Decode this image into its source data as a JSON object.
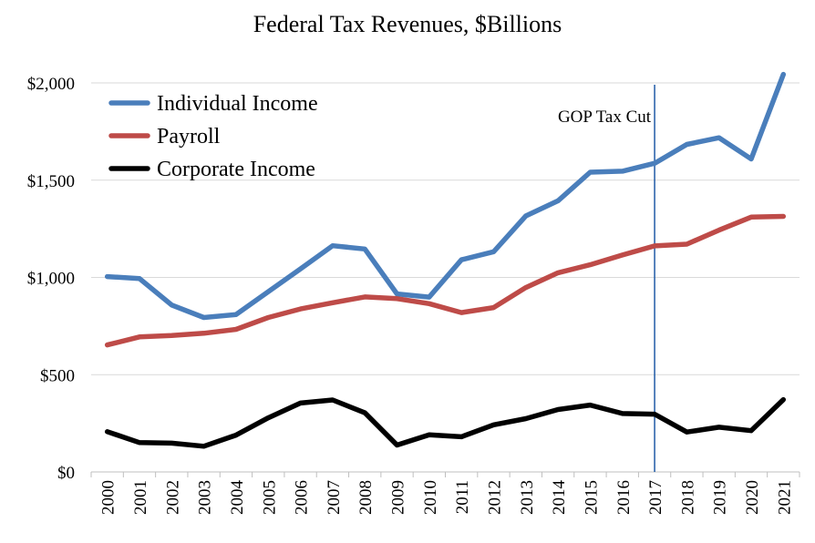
{
  "chart_data": {
    "type": "line",
    "title": "Federal Tax Revenues, $Billions",
    "xlabel": "",
    "ylabel": "",
    "x": [
      "2000",
      "2001",
      "2002",
      "2003",
      "2004",
      "2005",
      "2006",
      "2007",
      "2008",
      "2009",
      "2010",
      "2011",
      "2012",
      "2013",
      "2014",
      "2015",
      "2016",
      "2017",
      "2018",
      "2019",
      "2020",
      "2021"
    ],
    "ylim": [
      0,
      2000
    ],
    "yticks": [
      0,
      500,
      1000,
      1500,
      2000
    ],
    "ytick_labels": [
      "$0",
      "$500",
      "$1,000",
      "$1,500",
      "$2,000"
    ],
    "grid": "horizontal",
    "legend_position": "top-left",
    "series": [
      {
        "name": "Individual Income",
        "color": "#4a7ebb",
        "values": [
          1004,
          994,
          858,
          794,
          809,
          927,
          1044,
          1163,
          1146,
          915,
          899,
          1091,
          1132,
          1316,
          1394,
          1541,
          1546,
          1587,
          1684,
          1718,
          1609,
          2044
        ]
      },
      {
        "name": "Payroll",
        "color": "#be4b48",
        "values": [
          653,
          694,
          701,
          713,
          733,
          794,
          838,
          870,
          900,
          891,
          865,
          819,
          845,
          948,
          1024,
          1065,
          1115,
          1162,
          1171,
          1243,
          1310,
          1314
        ]
      },
      {
        "name": "Corporate Income",
        "color": "#000000",
        "values": [
          207,
          151,
          148,
          132,
          189,
          278,
          354,
          370,
          304,
          138,
          191,
          181,
          242,
          274,
          321,
          344,
          300,
          297,
          205,
          230,
          212,
          372
        ]
      }
    ],
    "annotations": [
      {
        "type": "vline",
        "x": "2017",
        "label": "GOP Tax Cut",
        "color": "#1f5aa6"
      }
    ]
  }
}
